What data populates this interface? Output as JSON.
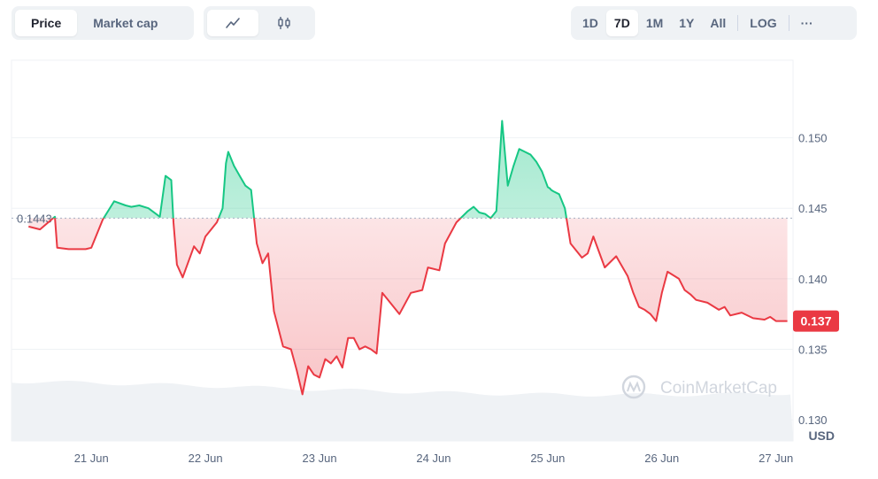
{
  "toolbar": {
    "metric_tabs": [
      "Price",
      "Market cap"
    ],
    "active_metric": "Price",
    "chart_type_icons": [
      "line-chart-icon",
      "candlestick-icon"
    ],
    "range_tabs": [
      "1D",
      "7D",
      "1M",
      "1Y",
      "All"
    ],
    "active_range": "7D",
    "scale_label": "LOG",
    "more_label": "···"
  },
  "colors": {
    "up": "#16c784",
    "down": "#ea3943",
    "baseline": "#a6b0c3",
    "volume": "#eff2f5"
  },
  "watermark": "CoinMarketCap",
  "currency_label": "USD",
  "chart_data": {
    "type": "line",
    "baseline_value": 0.1443,
    "baseline_label": "0.1443",
    "current_value": 0.137,
    "current_label": "0.137",
    "ylim": [
      0.1285,
      0.1555
    ],
    "ytick_values": [
      0.13,
      0.135,
      0.14,
      0.145,
      0.15
    ],
    "yticks": [
      "0.130",
      "0.135",
      "0.140",
      "0.145",
      "0.150"
    ],
    "xlim": [
      20.3,
      27.15
    ],
    "xtick_values": [
      21,
      22,
      23,
      24,
      25,
      26,
      27
    ],
    "xticks": [
      "21 Jun",
      "22 Jun",
      "23 Jun",
      "24 Jun",
      "25 Jun",
      "26 Jun",
      "27 Jun"
    ],
    "series": [
      {
        "x": [
          20.45,
          20.55,
          20.68,
          20.7,
          20.8,
          20.95,
          21.0,
          21.1,
          21.2,
          21.3,
          21.35,
          21.42,
          21.5,
          21.6,
          21.65,
          21.7,
          21.72,
          21.75,
          21.8,
          21.9,
          21.95,
          22.0,
          22.05,
          22.1,
          22.15,
          22.18,
          22.2,
          22.25,
          22.3,
          22.35,
          22.4,
          22.45,
          22.5,
          22.55,
          22.6,
          22.68,
          22.75,
          22.8,
          22.85,
          22.9,
          22.95,
          23.0,
          23.05,
          23.1,
          23.15,
          23.2,
          23.25,
          23.3,
          23.35,
          23.4,
          23.45,
          23.5,
          23.55,
          23.6,
          23.7,
          23.8,
          23.9,
          23.95,
          24.05,
          24.1,
          24.2,
          24.3,
          24.35,
          24.4,
          24.45,
          24.5,
          24.55,
          24.6,
          24.65,
          24.7,
          24.75,
          24.8,
          24.85,
          24.9,
          24.95,
          25.0,
          25.02,
          25.03,
          25.05,
          25.1,
          25.15,
          25.2,
          25.3,
          25.35,
          25.4,
          25.5,
          25.6,
          25.7,
          25.75,
          25.8,
          25.85,
          25.9,
          25.95,
          26.0,
          26.05,
          26.15,
          26.2,
          26.25,
          26.3,
          26.4,
          26.5,
          26.55,
          26.6,
          26.7,
          26.8,
          26.9,
          26.95,
          27.0,
          27.05,
          27.1
        ],
        "values": [
          0.1437,
          0.1435,
          0.1444,
          0.1422,
          0.1421,
          0.1421,
          0.1422,
          0.1442,
          0.1455,
          0.1452,
          0.1451,
          0.1452,
          0.145,
          0.1444,
          0.1473,
          0.147,
          0.144,
          0.141,
          0.1401,
          0.1423,
          0.1418,
          0.143,
          0.1435,
          0.144,
          0.145,
          0.1482,
          0.149,
          0.148,
          0.1473,
          0.1466,
          0.1463,
          0.1425,
          0.1411,
          0.1418,
          0.1377,
          0.1352,
          0.135,
          0.1335,
          0.1318,
          0.1338,
          0.1332,
          0.133,
          0.1343,
          0.134,
          0.1345,
          0.1337,
          0.1358,
          0.1358,
          0.135,
          0.1352,
          0.135,
          0.1347,
          0.139,
          0.1385,
          0.1375,
          0.139,
          0.1392,
          0.1408,
          0.1406,
          0.1425,
          0.144,
          0.1448,
          0.1451,
          0.1447,
          0.1446,
          0.1443,
          0.1448,
          0.1512,
          0.1466,
          0.148,
          0.1492,
          0.149,
          0.1488,
          0.1483,
          0.1476,
          0.1465,
          0.1464,
          0.1463,
          0.1462,
          0.146,
          0.145,
          0.1425,
          0.1415,
          0.1418,
          0.143,
          0.1408,
          0.1416,
          0.1402,
          0.139,
          0.138,
          0.1378,
          0.1375,
          0.137,
          0.139,
          0.1405,
          0.14,
          0.1392,
          0.1389,
          0.1385,
          0.1383,
          0.1378,
          0.138,
          0.1374,
          0.1376,
          0.1372,
          0.1371,
          0.1373,
          0.137,
          0.137,
          0.137
        ]
      }
    ]
  }
}
